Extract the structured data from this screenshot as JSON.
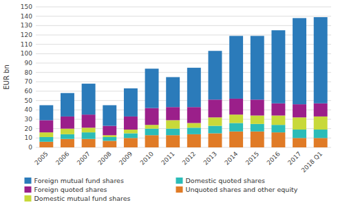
{
  "chart_data": {
    "type": "bar",
    "stacked": true,
    "categories": [
      "2005",
      "2006",
      "2007",
      "2008",
      "2009",
      "2010",
      "2011",
      "2012",
      "2013",
      "2014",
      "2015",
      "2016",
      "2017",
      "2018 Q1"
    ],
    "series": [
      {
        "name": "Unquoted shares and other equity",
        "color": "#e07b26",
        "values": [
          6,
          9,
          9,
          7,
          10,
          13,
          13,
          14,
          15,
          17,
          17,
          16,
          10,
          10
        ]
      },
      {
        "name": "Domestic quoted shares",
        "color": "#2bbcb8",
        "values": [
          5,
          5,
          7,
          4,
          5,
          7,
          7,
          7,
          8,
          9,
          8,
          8,
          9,
          9
        ]
      },
      {
        "name": "Domestic mutual fund shares",
        "color": "#c8d93a",
        "values": [
          5,
          6,
          5,
          2,
          4,
          4,
          9,
          5,
          9,
          9,
          9,
          10,
          13,
          14
        ]
      },
      {
        "name": "Foreign quoted shares",
        "color": "#9b1f8a",
        "values": [
          13,
          13,
          14,
          10,
          14,
          18,
          14,
          17,
          19,
          17,
          17,
          13,
          14,
          14
        ]
      },
      {
        "name": "Foreign mutual fund shares",
        "color": "#2b7bba",
        "values": [
          16,
          25,
          33,
          22,
          30,
          42,
          32,
          42,
          52,
          67,
          68,
          78,
          92,
          92
        ]
      }
    ],
    "ylabel": "EUR bn",
    "ylim": [
      0,
      150
    ],
    "yticks": [
      0,
      10,
      20,
      30,
      40,
      50,
      60,
      70,
      80,
      90,
      100,
      110,
      120,
      130,
      140,
      150
    ],
    "grid": true,
    "legend": "bottom"
  }
}
